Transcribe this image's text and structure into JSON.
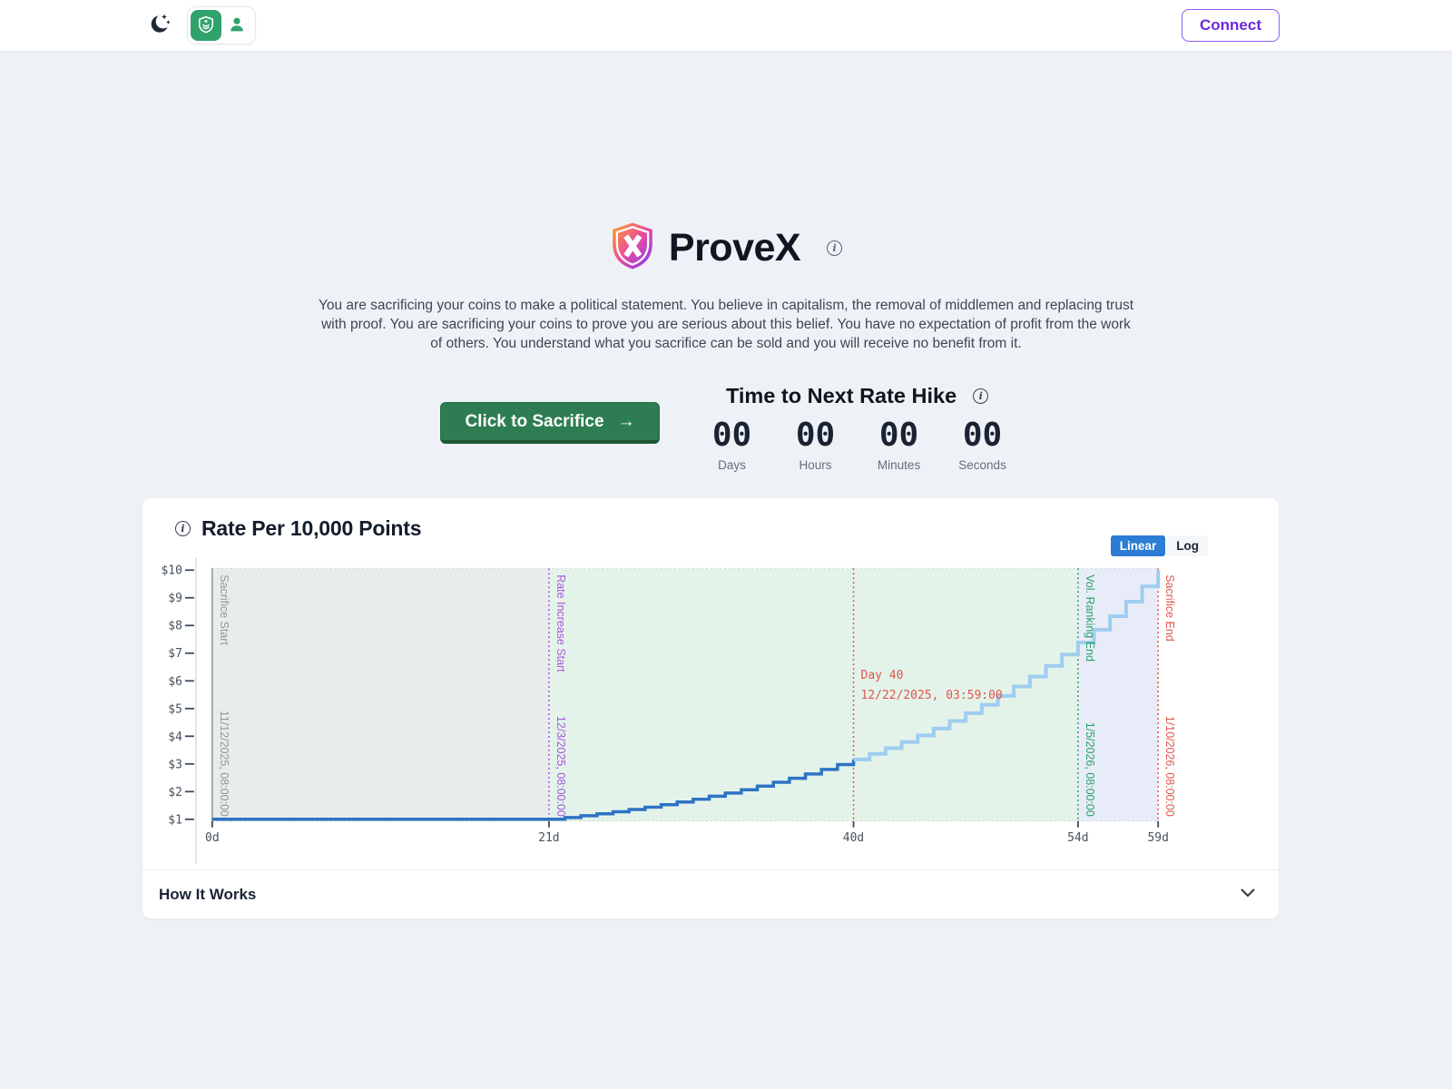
{
  "icons": {
    "info_glyph": "i",
    "arrow_right": "→"
  },
  "navbar": {
    "connect_label": "Connect"
  },
  "hero": {
    "title": "ProveX",
    "description": "You are sacrificing your coins to make a political statement. You believe in capitalism, the removal of middlemen and replacing trust with proof. You are sacrificing your coins to prove you are serious about this belief. You have no expectation of profit from the work of others. You understand what you sacrifice can be sold and you will receive no benefit from it.",
    "sacrifice_button_label": "Click to Sacrifice",
    "countdown": {
      "title": "Time to Next Rate Hike",
      "units": [
        {
          "value": "00",
          "label": "Days"
        },
        {
          "value": "00",
          "label": "Hours"
        },
        {
          "value": "00",
          "label": "Minutes"
        },
        {
          "value": "00",
          "label": "Seconds"
        }
      ]
    }
  },
  "chart_card": {
    "title": "Rate Per 10,000 Points",
    "scale_toggle": {
      "options": [
        "Linear",
        "Log"
      ],
      "active": "Linear"
    },
    "how_it_works_label": "How It Works"
  },
  "chart_data": {
    "type": "line",
    "line_shape": "step-after",
    "title": "Rate Per 10,000 Points",
    "x_unit": "days",
    "xlim": [
      0,
      59
    ],
    "ylim": [
      1,
      10
    ],
    "grid": false,
    "scale": "linear",
    "x_ticks": [
      {
        "label": "0d",
        "day": 0
      },
      {
        "label": "21d",
        "day": 21
      },
      {
        "label": "40d",
        "day": 40
      },
      {
        "label": "54d",
        "day": 54
      },
      {
        "label": "59d",
        "day": 59
      }
    ],
    "y_ticks": [
      "$1",
      "$2",
      "$3",
      "$4",
      "$5",
      "$6",
      "$7",
      "$8",
      "$9",
      "$10"
    ],
    "split_day": 40,
    "series": [
      {
        "name": "rate-past",
        "color": "#2e73c4",
        "width": 3.5
      },
      {
        "name": "rate-future",
        "color": "#9ecdf0",
        "width": 4
      }
    ],
    "steps": {
      "days": [
        0,
        21,
        22,
        23,
        24,
        25,
        26,
        27,
        28,
        29,
        30,
        31,
        32,
        33,
        34,
        35,
        36,
        37,
        38,
        39,
        40,
        41,
        42,
        43,
        44,
        45,
        46,
        47,
        48,
        49,
        50,
        51,
        52,
        53,
        54,
        55,
        56,
        57,
        58,
        59
      ],
      "values": [
        1,
        1,
        1.062,
        1.129,
        1.199,
        1.274,
        1.354,
        1.438,
        1.528,
        1.624,
        1.725,
        1.833,
        1.948,
        2.069,
        2.198,
        2.336,
        2.482,
        2.637,
        2.801,
        2.976,
        3.162,
        3.36,
        3.57,
        3.793,
        4.03,
        4.281,
        4.549,
        4.833,
        5.135,
        5.456,
        5.796,
        6.158,
        6.543,
        6.952,
        7.386,
        7.848,
        8.338,
        8.859,
        9.412,
        10
      ]
    },
    "regions": [
      {
        "from_day": 0,
        "to_day": 21,
        "color": "#e8edeb"
      },
      {
        "from_day": 21,
        "to_day": 54,
        "color": "#e4f3ea"
      },
      {
        "from_day": 54,
        "to_day": 59,
        "color": "#e8ecf8"
      }
    ],
    "annotations": [
      {
        "day": 0,
        "label": "Sacrifice Start",
        "date": "11/12/2025, 08:00:00",
        "color": "#8e979f",
        "style": "solid",
        "orientation": "vertical"
      },
      {
        "day": 21,
        "label": "Rate Increase Start",
        "date": "12/3/2025, 08:00:00",
        "color": "#a855e0",
        "style": "dotted",
        "orientation": "vertical"
      },
      {
        "day": 40,
        "label": "Day 40",
        "date": "12/22/2025, 03:59:00",
        "color": "#e0564a",
        "style": "dotted",
        "orientation": "horizontal"
      },
      {
        "day": 54,
        "label": "Vol. Ranking End",
        "date": "1/5/2026, 08:00:00",
        "color": "#27a266",
        "style": "dotted",
        "orientation": "vertical"
      },
      {
        "day": 59,
        "label": "Sacrifice End",
        "date": "1/10/2026, 08:00:00",
        "color": "#e0564a",
        "style": "dotted",
        "orientation": "vertical"
      }
    ]
  }
}
